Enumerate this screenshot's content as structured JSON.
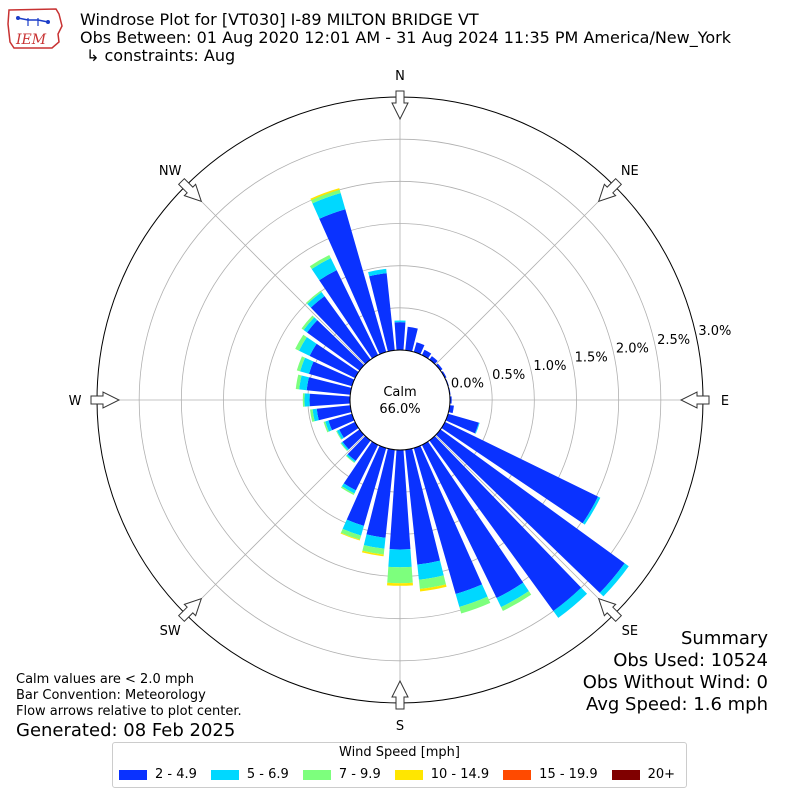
{
  "header": {
    "logo_text": "IEM",
    "title": "Windrose Plot for [VT030] I-89 MILTON BRIDGE  VT",
    "subtitle": "Obs Between: 01 Aug 2020 12:01 AM - 31 Aug 2024 11:35 PM America/New_York",
    "constraints": "↳ constraints: Aug"
  },
  "summary": {
    "heading": "Summary",
    "obs_used": "Obs Used: 10524",
    "obs_without_wind": "Obs Without Wind: 0",
    "avg_speed": "Avg Speed: 1.6 mph"
  },
  "notes": {
    "calm": "Calm values are < 2.0 mph",
    "convention": "Bar Convention: Meteorology",
    "flow": "Flow arrows relative to plot center.",
    "generated": "Generated: 08 Feb 2025"
  },
  "legend": {
    "title": "Wind Speed [mph]",
    "items": [
      {
        "label": "2 - 4.9",
        "color": "#0a32ff"
      },
      {
        "label": "5 - 6.9",
        "color": "#00d8ff"
      },
      {
        "label": "7 - 9.9",
        "color": "#7dff7d"
      },
      {
        "label": "10 - 14.9",
        "color": "#ffe600"
      },
      {
        "label": "15 - 19.9",
        "color": "#ff4a00"
      },
      {
        "label": "20+",
        "color": "#800000"
      }
    ]
  },
  "chart_data": {
    "type": "windrose",
    "center_label": "Calm",
    "center_value": "66.0%",
    "compass_labels": [
      "N",
      "NE",
      "E",
      "SE",
      "S",
      "SW",
      "W",
      "NW"
    ],
    "radial_ticks": [
      0.0,
      0.5,
      1.0,
      1.5,
      2.0,
      2.5,
      3.0
    ],
    "radial_tick_labels": [
      "0.0%",
      "0.5%",
      "1.0%",
      "1.5%",
      "2.0%",
      "2.5%",
      "3.0%"
    ],
    "rmax": 3.0,
    "bin_width_deg": 10,
    "directions": [
      0,
      10,
      20,
      30,
      40,
      50,
      60,
      70,
      80,
      90,
      100,
      110,
      120,
      130,
      140,
      150,
      160,
      170,
      180,
      190,
      200,
      210,
      220,
      230,
      240,
      250,
      260,
      270,
      280,
      290,
      300,
      310,
      320,
      330,
      340,
      350
    ],
    "series": [
      {
        "name": "2 - 4.9",
        "color": "#0a32ff",
        "values": [
          0.33,
          0.28,
          0.12,
          0.07,
          0.05,
          0.03,
          0.02,
          0.01,
          0.01,
          0.02,
          0.05,
          0.38,
          2.02,
          2.7,
          2.5,
          2.02,
          1.8,
          1.37,
          1.18,
          1.05,
          0.96,
          0.6,
          0.3,
          0.25,
          0.21,
          0.29,
          0.4,
          0.48,
          0.52,
          0.53,
          0.6,
          0.77,
          0.93,
          1.12,
          1.76,
          0.92
        ]
      },
      {
        "name": "5 - 6.9",
        "color": "#00d8ff",
        "values": [
          0.02,
          0.0,
          0.0,
          0.0,
          0.0,
          0.0,
          0.0,
          0.0,
          0.0,
          0.0,
          0.0,
          0.01,
          0.03,
          0.06,
          0.1,
          0.12,
          0.16,
          0.18,
          0.21,
          0.13,
          0.12,
          0.04,
          0.02,
          0.02,
          0.03,
          0.04,
          0.05,
          0.06,
          0.09,
          0.11,
          0.14,
          0.05,
          0.06,
          0.16,
          0.2,
          0.05
        ]
      },
      {
        "name": "7 - 9.9",
        "color": "#7dff7d",
        "values": [
          0.0,
          0.0,
          0.0,
          0.0,
          0.0,
          0.0,
          0.0,
          0.0,
          0.0,
          0.0,
          0.0,
          0.0,
          0.0,
          0.0,
          0.0,
          0.05,
          0.08,
          0.11,
          0.19,
          0.07,
          0.05,
          0.02,
          0.01,
          0.01,
          0.01,
          0.02,
          0.03,
          0.02,
          0.04,
          0.04,
          0.05,
          0.03,
          0.02,
          0.04,
          0.04,
          0.0
        ]
      },
      {
        "name": "10 - 14.9",
        "color": "#ffe600",
        "values": [
          0.0,
          0.0,
          0.0,
          0.0,
          0.0,
          0.0,
          0.0,
          0.0,
          0.0,
          0.0,
          0.0,
          0.0,
          0.0,
          0.0,
          0.0,
          0.0,
          0.0,
          0.03,
          0.03,
          0.02,
          0.01,
          0.0,
          0.0,
          0.0,
          0.0,
          0.0,
          0.0,
          0.0,
          0.0,
          0.0,
          0.0,
          0.0,
          0.0,
          0.0,
          0.02,
          0.0
        ]
      },
      {
        "name": "15 - 19.9",
        "color": "#ff4a00",
        "values": [
          0,
          0,
          0,
          0,
          0,
          0,
          0,
          0,
          0,
          0,
          0,
          0,
          0,
          0,
          0,
          0,
          0,
          0,
          0,
          0,
          0,
          0,
          0,
          0,
          0,
          0,
          0,
          0,
          0,
          0,
          0,
          0,
          0,
          0,
          0,
          0
        ]
      },
      {
        "name": "20+",
        "color": "#800000",
        "values": [
          0,
          0,
          0,
          0,
          0,
          0,
          0,
          0,
          0,
          0,
          0,
          0,
          0,
          0,
          0,
          0,
          0,
          0,
          0,
          0,
          0,
          0,
          0,
          0,
          0,
          0,
          0,
          0,
          0,
          0,
          0,
          0,
          0,
          0,
          0,
          0
        ]
      }
    ]
  }
}
